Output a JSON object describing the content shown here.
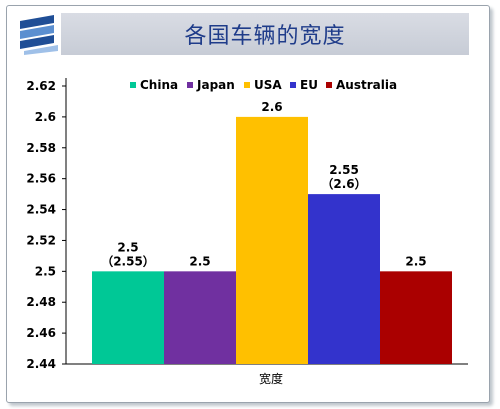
{
  "title": "各国车辆的宽度",
  "chart_data": {
    "type": "bar",
    "title": "各国车辆的宽度",
    "xlabel": "宽度",
    "ylabel": "",
    "ylim": [
      2.44,
      2.62
    ],
    "yticks": [
      "2.62",
      "2.6",
      "2.58",
      "2.56",
      "2.54",
      "2.52",
      "2.5",
      "2.48",
      "2.46",
      "2.44"
    ],
    "legend_position": "top",
    "grid": false,
    "series": [
      {
        "name": "China",
        "value": 2.5,
        "label": "2.5",
        "sublabel": "（2.55）",
        "color": "#00c896"
      },
      {
        "name": "Japan",
        "value": 2.5,
        "label": "2.5",
        "sublabel": "",
        "color": "#7030a0"
      },
      {
        "name": "USA",
        "value": 2.6,
        "label": "2.6",
        "sublabel": "",
        "color": "#ffc000"
      },
      {
        "name": "EU",
        "value": 2.55,
        "label": "2.55",
        "sublabel": "（2.6）",
        "color": "#3333cc"
      },
      {
        "name": "Australia",
        "value": 2.5,
        "label": "2.5",
        "sublabel": "",
        "color": "#aa0000"
      }
    ]
  }
}
